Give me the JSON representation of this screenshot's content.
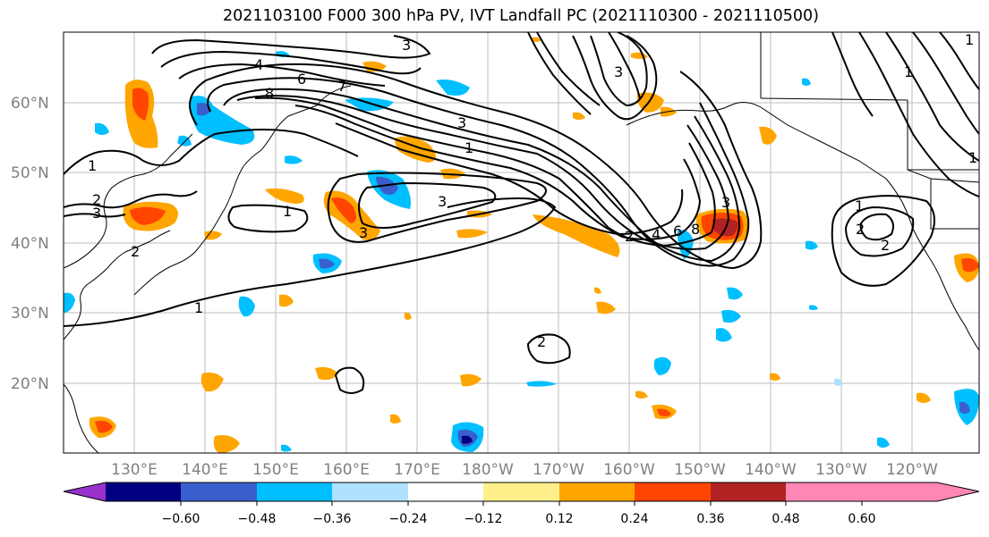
{
  "title": "2021103100 F000 300 hPa PV, IVT Landfall PC (2021110300 - 2021110500)",
  "lat_labels": [
    "60°N",
    "50°N",
    "40°N",
    "30°N",
    "20°N"
  ],
  "lon_labels": [
    "130°E",
    "140°E",
    "150°E",
    "160°E",
    "170°E",
    "180°W",
    "170°W",
    "160°W",
    "150°W",
    "140°W",
    "130°W",
    "120°W"
  ],
  "map_extent": {
    "lon_min": 120,
    "lon_max": 250,
    "lat_min": 10,
    "lat_max": 70
  },
  "colorbar": {
    "ticks": [
      "−0.60",
      "−0.48",
      "−0.36",
      "−0.24",
      "−0.12",
      "0.12",
      "0.24",
      "0.36",
      "0.48",
      "0.60"
    ],
    "colors": [
      "#9932cc",
      "#000080",
      "#3a5fcd",
      "#00bfff",
      "#b0e2ff",
      "#ffffff",
      "#fff08c",
      "#ffa500",
      "#ff4500",
      "#b22222",
      "#ff87b4"
    ]
  },
  "contour_labels": [
    "1",
    "2",
    "3",
    "4",
    "6",
    "7",
    "8",
    "3",
    "1",
    "3",
    "1",
    "2",
    "3",
    "2",
    "1",
    "2",
    "4",
    "6",
    "8",
    "1",
    "2",
    "1",
    "1",
    "2",
    "3",
    "3",
    "1",
    "3"
  ],
  "colors": {
    "pv_contour": "#000000",
    "coastline": "#000000",
    "grid": "#bbbbbb"
  }
}
